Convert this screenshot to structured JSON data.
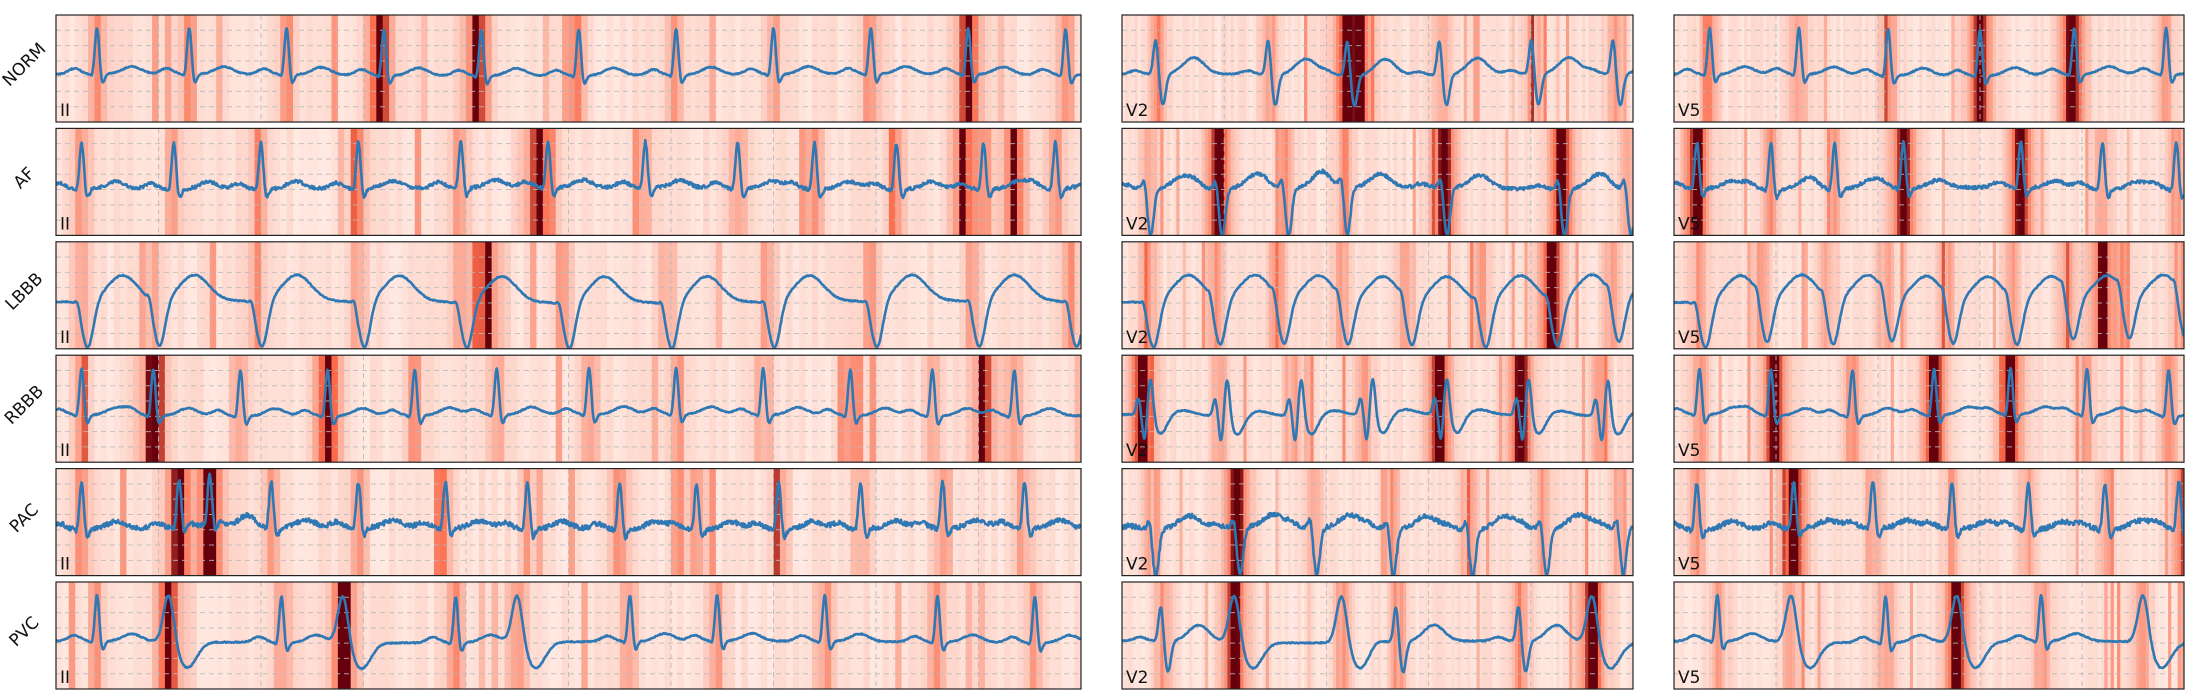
{
  "chart_data": {
    "type": "line",
    "description": "",
    "colors": {
      "signal": "#2f78b3",
      "frame": "#222222",
      "grid": "#b9b9b9",
      "heat_low": "#fff5f0",
      "heat_mid": "#fb6a4a",
      "heat_high": "#67000d"
    },
    "lead_columns": [
      "II",
      "V2",
      "V5"
    ],
    "rows": [
      {
        "label": "NORM",
        "panels": [
          {
            "lead": "II",
            "beats": [
              0.04,
              0.13,
              0.225,
              0.32,
              0.415,
              0.51,
              0.605,
              0.7,
              0.795,
              0.89,
              0.985
            ],
            "qrs": "upright",
            "hot": [
              0.315,
              0.41,
              0.89
            ]
          },
          {
            "lead": "V2",
            "beats": [
              0.07,
              0.29,
              0.445,
              0.625,
              0.805,
              0.965
            ],
            "qrs": "rs",
            "hot": [
              0.44,
              0.465
            ]
          },
          {
            "lead": "V5",
            "beats": [
              0.07,
              0.245,
              0.42,
              0.6,
              0.785,
              0.965
            ],
            "qrs": "upright",
            "hot": [
              0.6,
              0.78
            ]
          }
        ]
      },
      {
        "label": "AF",
        "panels": [
          {
            "lead": "II",
            "beats": [
              0.025,
              0.115,
              0.2,
              0.295,
              0.395,
              0.48,
              0.575,
              0.665,
              0.74,
              0.82,
              0.905,
              0.975
            ],
            "qrs": "upright",
            "hot": [
              0.47,
              0.885,
              0.935
            ]
          },
          {
            "lead": "V2",
            "beats": [
              0.05,
              0.19,
              0.32,
              0.435,
              0.63,
              0.86,
              0.99
            ],
            "qrs": "deep-s",
            "hot": [
              0.19,
              0.63,
              0.86
            ]
          },
          {
            "lead": "V5",
            "beats": [
              0.045,
              0.19,
              0.315,
              0.45,
              0.68,
              0.84,
              0.985
            ],
            "qrs": "upright",
            "hot": [
              0.045,
              0.45,
              0.68
            ]
          }
        ]
      },
      {
        "label": "LBBB",
        "panels": [
          {
            "lead": "II",
            "beats": [
              0.025,
              0.095,
              0.195,
              0.295,
              0.395,
              0.495,
              0.595,
              0.695,
              0.795,
              0.895,
              0.99
            ],
            "qrs": "wide-neg",
            "hot": [
              0.42
            ]
          },
          {
            "lead": "V2",
            "beats": [
              0.05,
              0.18,
              0.305,
              0.43,
              0.555,
              0.7,
              0.84,
              0.96
            ],
            "qrs": "wide-neg",
            "hot": [
              0.84
            ]
          },
          {
            "lead": "V5",
            "beats": [
              0.05,
              0.17,
              0.3,
              0.415,
              0.535,
              0.66,
              0.77,
              0.88,
              0.99
            ],
            "qrs": "wide-neg",
            "hot": [
              0.84
            ]
          }
        ]
      },
      {
        "label": "RBBB",
        "panels": [
          {
            "lead": "II",
            "beats": [
              0.025,
              0.095,
              0.18,
              0.265,
              0.35,
              0.43,
              0.52,
              0.605,
              0.69,
              0.775,
              0.855,
              0.935
            ],
            "qrs": "upright",
            "hot": [
              0.095,
              0.265,
              0.905
            ]
          },
          {
            "lead": "V2",
            "beats": [
              0.04,
              0.19,
              0.335,
              0.475,
              0.62,
              0.78,
              0.935
            ],
            "qrs": "rsr",
            "hot": [
              0.04,
              0.62,
              0.78
            ]
          },
          {
            "lead": "V5",
            "beats": [
              0.05,
              0.19,
              0.35,
              0.51,
              0.66,
              0.81,
              0.97
            ],
            "qrs": "upright",
            "hot": [
              0.2,
              0.51,
              0.66
            ]
          }
        ]
      },
      {
        "label": "PAC",
        "panels": [
          {
            "lead": "II",
            "beats": [
              0.025,
              0.12,
              0.15,
              0.21,
              0.295,
              0.38,
              0.46,
              0.55,
              0.625,
              0.705,
              0.785,
              0.865,
              0.945
            ],
            "qrs": "upright",
            "hot": [
              0.12,
              0.15
            ]
          },
          {
            "lead": "V2",
            "beats": [
              0.06,
              0.225,
              0.375,
              0.525,
              0.68,
              0.825,
              0.975
            ],
            "qrs": "deep-s",
            "hot": [
              0.225
            ]
          },
          {
            "lead": "V5",
            "beats": [
              0.045,
              0.235,
              0.39,
              0.545,
              0.695,
              0.845,
              0.99
            ],
            "qrs": "upright",
            "hot": [
              0.235
            ]
          }
        ]
      },
      {
        "label": "PVC",
        "panels": [
          {
            "lead": "II",
            "beats": [
              0.04,
              0.11,
              0.22,
              0.28,
              0.39,
              0.45,
              0.56,
              0.645,
              0.75,
              0.86,
              0.955
            ],
            "qrs": "upright",
            "pvc": [
              0.11,
              0.28,
              0.45
            ],
            "hot": [
              0.11,
              0.28
            ]
          },
          {
            "lead": "V2",
            "beats": [
              0.08,
              0.22,
              0.43,
              0.54,
              0.78,
              0.92
            ],
            "qrs": "rs",
            "pvc": [
              0.22,
              0.43,
              0.92
            ],
            "hot": [
              0.22,
              0.92
            ]
          },
          {
            "lead": "V5",
            "beats": [
              0.085,
              0.23,
              0.415,
              0.555,
              0.72,
              0.92
            ],
            "qrs": "upright",
            "pvc": [
              0.23,
              0.555,
              0.92
            ],
            "hot": [
              0.555
            ]
          }
        ]
      }
    ]
  }
}
